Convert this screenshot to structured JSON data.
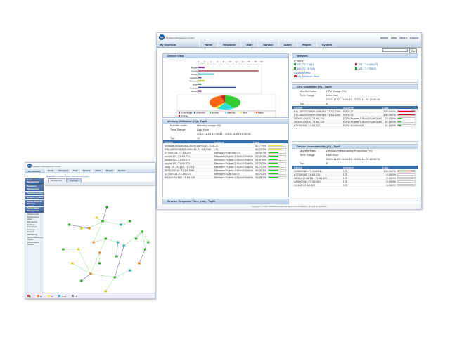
{
  "app": {
    "title": "Intelligent Management Center",
    "logo": "hp",
    "shortcut": "My Shortcut",
    "nav": [
      "Home",
      "Resource",
      "User",
      "Service",
      "Alarm",
      "Report",
      "System"
    ],
    "user_links": [
      "admin",
      "Help",
      "About",
      "Logout"
    ],
    "go": "Go",
    "copyright": "Copyright © 2010 Hewlett-Packard Development Company, L.P. and its licensors"
  },
  "device_view": {
    "title": "Device View",
    "chart_data": {
      "type": "bar",
      "orientation": "horizontal",
      "categories": [
        "Router",
        "Switch",
        "Server",
        "Security",
        "Wireless",
        "Voice",
        "Desktop",
        "Others"
      ],
      "values": [
        2,
        19,
        5,
        1,
        2,
        1,
        12,
        1
      ],
      "xlim": [
        0,
        20
      ],
      "ticks": [
        "0",
        "2",
        "4",
        "6",
        "8",
        "10",
        "12",
        "14",
        "16",
        "18",
        "20"
      ],
      "colors": [
        "#7a3b8f",
        "#c06070",
        "#40b0b0",
        "#7a3b8f",
        "#b0c040",
        "#60a060",
        "#3040a0",
        "#7a3b8f"
      ]
    },
    "pie": {
      "type": "pie",
      "slices": [
        {
          "name": "Normal",
          "value": 40,
          "color": "#33cc33"
        },
        {
          "name": "Warning",
          "value": 18,
          "color": "#33dddd"
        },
        {
          "name": "Minor",
          "value": 4,
          "color": "#eeee33"
        },
        {
          "name": "Major",
          "value": 33,
          "color": "#ff6611"
        },
        {
          "name": "Critical",
          "value": 5,
          "color": "#dd2222"
        }
      ]
    },
    "legend": [
      {
        "name": "Unmanaged",
        "color": "#7a3b8f"
      },
      {
        "name": "Unknown",
        "color": "#2233aa"
      },
      {
        "name": "Normal",
        "color": "#33cc33"
      },
      {
        "name": "Warning",
        "color": "#33dddd"
      },
      {
        "name": "Minor",
        "color": "#eeee33"
      },
      {
        "name": "Major",
        "color": "#ff6611"
      },
      {
        "name": "Critical",
        "color": "#dd2222"
      }
    ]
  },
  "memory": {
    "title": "Memory Utilization (%) - TopN",
    "monitor_index_label": "Monitor Index",
    "monitor_index": "Memory Usage (%)",
    "time_range_label": "Time Range",
    "time_range": "Last Hour",
    "period": "2010-11-03 11:00:51 - 2010-11-03 12:00:51",
    "top_label": "Top",
    "top": "10",
    "columns": [
      "Device",
      "Instance",
      "Data"
    ],
    "rows": [
      {
        "device": "godslab.fedora.gsa.3com.com(161.71.64.84)",
        "instance": "[-3]",
        "data": "82.779%",
        "pct": 82.8
      },
      {
        "device": "ESL4820G3SER-009(161.71.64.200)",
        "instance": "[-3]",
        "data": "80.623%",
        "pct": 80.6
      },
      {
        "device": "s7750(161.71.64.22)",
        "instance": "[Memory(Sub)Slot:4]",
        "data": "58.957%",
        "pct": 59
      },
      {
        "device": "paola(161.71.64.23)",
        "instance": "[Memory:Frame:1:Slot:0:SubSlot:0]",
        "data": "57.001%",
        "pct": 57
      },
      {
        "device": "paola(161.71.64.23)",
        "instance": "[Memory:Frame:2:Slot:0:SubSlot:0]",
        "data": "54.875%",
        "pct": 54.9
      },
      {
        "device": "paola(161.71.64.23)",
        "instance": "[Memory:Frame:2:Slot:0:SubSlot:0]",
        "data": "53.293%",
        "pct": 53.3
      },
      {
        "device": "vass_IS-21(161.71.78.1)",
        "instance": "[Memory:Frame:1:Slot:0:SubSlot:0]",
        "data": "61.723%",
        "pct": 61.7
      },
      {
        "device": "5500-EI(161.71.64.198)",
        "instance": "[Memory:Frame:1:Slot:0:SubSlot:0]",
        "data": "60.333%",
        "pct": 60.3
      },
      {
        "device": "s7750(161.71.64.22)",
        "instance": "[Memory(Sub)Slot:0]",
        "data": "58.781%",
        "pct": 58.8
      },
      {
        "device": "5500G-EI(161.71.64.24)",
        "instance": "[Memory:Frame:2:Slot:0:SubSlot:0]",
        "data": "56.307%",
        "pct": 56.3
      }
    ]
  },
  "service_response": {
    "title": "Service Response Time (ms) - TopN"
  },
  "network": {
    "title": "Network",
    "ip_view": "IP View",
    "ips": [
      "161.71.6.0(2)",
      "161.71.64.0(47)",
      "161.71.78.0(8)",
      "161.71.70.0(5)"
    ],
    "custom_view": "Custom View",
    "my_view": "My Network View"
  },
  "cpu": {
    "title": "CPU Utilization (%) - TopN",
    "monitor_index_label": "Monitor Index",
    "monitor_index": "CPU Usage (%)",
    "time_range_label": "Time Range",
    "time_range": "Last Hour",
    "period": "2010-11-03 11:00:51 - 2010-11-03 12:00:51",
    "top_label": "Top",
    "top": "5",
    "columns": [
      "Device",
      "Instance",
      "Data"
    ],
    "rows": [
      {
        "device": "ESL4820G3SER-009(161.71.64.200)",
        "instance": "[CPU:2]",
        "data": "100.000%",
        "pct": 100
      },
      {
        "device": "ESL4820G3SER-009(161.71.64.200)",
        "instance": "[CPU:3]",
        "data": "100.000%",
        "pct": 100
      },
      {
        "device": "5500G-EI(161.71.64.24)",
        "instance": "[CPU:Frame:2:Slot:0:SubSlot:0]",
        "data": "23.833%",
        "pct": 23.8
      },
      {
        "device": "5500G-EI(161.71.64.24)",
        "instance": "[CPU:Frame:1:Slot:0:SubSlot:0]",
        "data": "22.000%",
        "pct": 22
      },
      {
        "device": "s7750(161.71.64.22)",
        "instance": "[CPU:SubSlot:0]",
        "data": "21.833%",
        "pct": 21.8
      }
    ]
  },
  "unreach": {
    "title": "Device Unreachability (%) - TopN",
    "monitor_index_label": "Monitor Index",
    "monitor_index": "Device Unreachability Proportion (%)",
    "time_range_label": "Time Range",
    "time_range": "Last Hour",
    "period": "2010-11-03 11:00:51 - 2010-11-03 12:00:51",
    "top_label": "Top",
    "top": "5",
    "columns": [
      "Device",
      "Instance",
      "Data"
    ],
    "rows": [
      {
        "device": "S9502(161.71.64.151)",
        "instance": "[-3]",
        "data": "100.000%",
        "pct": 100
      },
      {
        "device": "s7750(161.71.64.22)",
        "instance": "[-3]",
        "data": "0.000%",
        "pct": 0
      },
      {
        "device": "4800-L2L48(161.71.64.50)",
        "instance": "[-3]",
        "data": "0.000%",
        "pct": 0
      },
      {
        "device": "A5500(161.71.64.42)",
        "instance": "[-3]",
        "data": "0.000%",
        "pct": 0
      },
      {
        "device": "IX(161.71.64.52)",
        "instance": "[-3]",
        "data": "0.000%",
        "pct": 0
      }
    ]
  },
  "status_bar": [
    {
      "icon": "critical",
      "count": "1",
      "color": "#dd2222"
    },
    {
      "icon": "major",
      "count": "32",
      "color": "#ff6611"
    },
    {
      "icon": "minor",
      "count": "16",
      "color": "#eeee33"
    },
    {
      "icon": "warning",
      "count": "1739",
      "color": "#33aadd"
    },
    {
      "icon": "info",
      "count": "14",
      "color": "#888888"
    }
  ],
  "front": {
    "breadcrumb": "Resource > Custom View > My Network View",
    "tabs": [
      "Device List",
      "Topology"
    ],
    "menus": [
      {
        "label": "User Management",
        "items": []
      },
      {
        "label": "Resource Management",
        "items": []
      },
      {
        "label": "Terminal Access",
        "items": []
      },
      {
        "label": "Network Access",
        "items": []
      },
      {
        "label": "Virtual Network Manager",
        "items": []
      },
      {
        "label": "Performance Management",
        "items": [
          "Global Index",
          "Performance View",
          "Monitoring Settings",
          "Threshold Settings",
          "Global Monitoring",
          "Global Resource Types",
          "Performance Option"
        ]
      }
    ],
    "status_bar": [
      {
        "count": "1",
        "color": "#dd2222"
      },
      {
        "count": "32",
        "color": "#ff6611"
      },
      {
        "count": "16",
        "color": "#eeee33"
      },
      {
        "count": "1739",
        "color": "#33aadd"
      },
      {
        "count": "14",
        "color": "#888888"
      }
    ]
  }
}
